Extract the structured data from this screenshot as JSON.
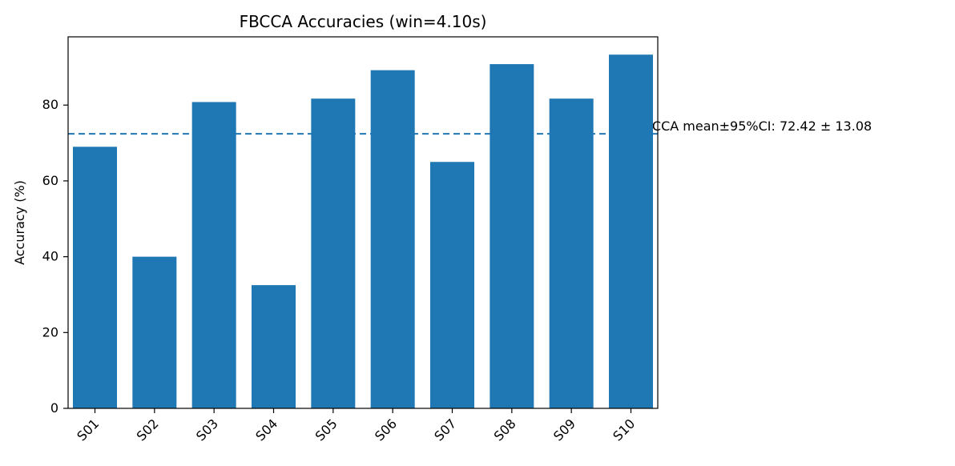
{
  "chart_data": {
    "type": "bar",
    "title": "FBCCA Accuracies (win=4.10s)",
    "xlabel": "",
    "ylabel": "Accuracy (%)",
    "categories": [
      "S01",
      "S02",
      "S03",
      "S04",
      "S05",
      "S06",
      "S07",
      "S08",
      "S09",
      "S10"
    ],
    "values": [
      69.0,
      40.0,
      80.8,
      32.5,
      81.7,
      89.2,
      65.0,
      90.8,
      81.7,
      93.3
    ],
    "ylim": [
      0,
      98
    ],
    "yticks": [
      0,
      20,
      40,
      60,
      80
    ],
    "bar_color": "#1f77b4",
    "reference_line": {
      "value": 72.42,
      "style": "dashed",
      "color": "#1f77b4",
      "label": "FBCCA mean±95%CI: 72.42 ± 13.08"
    },
    "grid": false,
    "legend": "none"
  }
}
